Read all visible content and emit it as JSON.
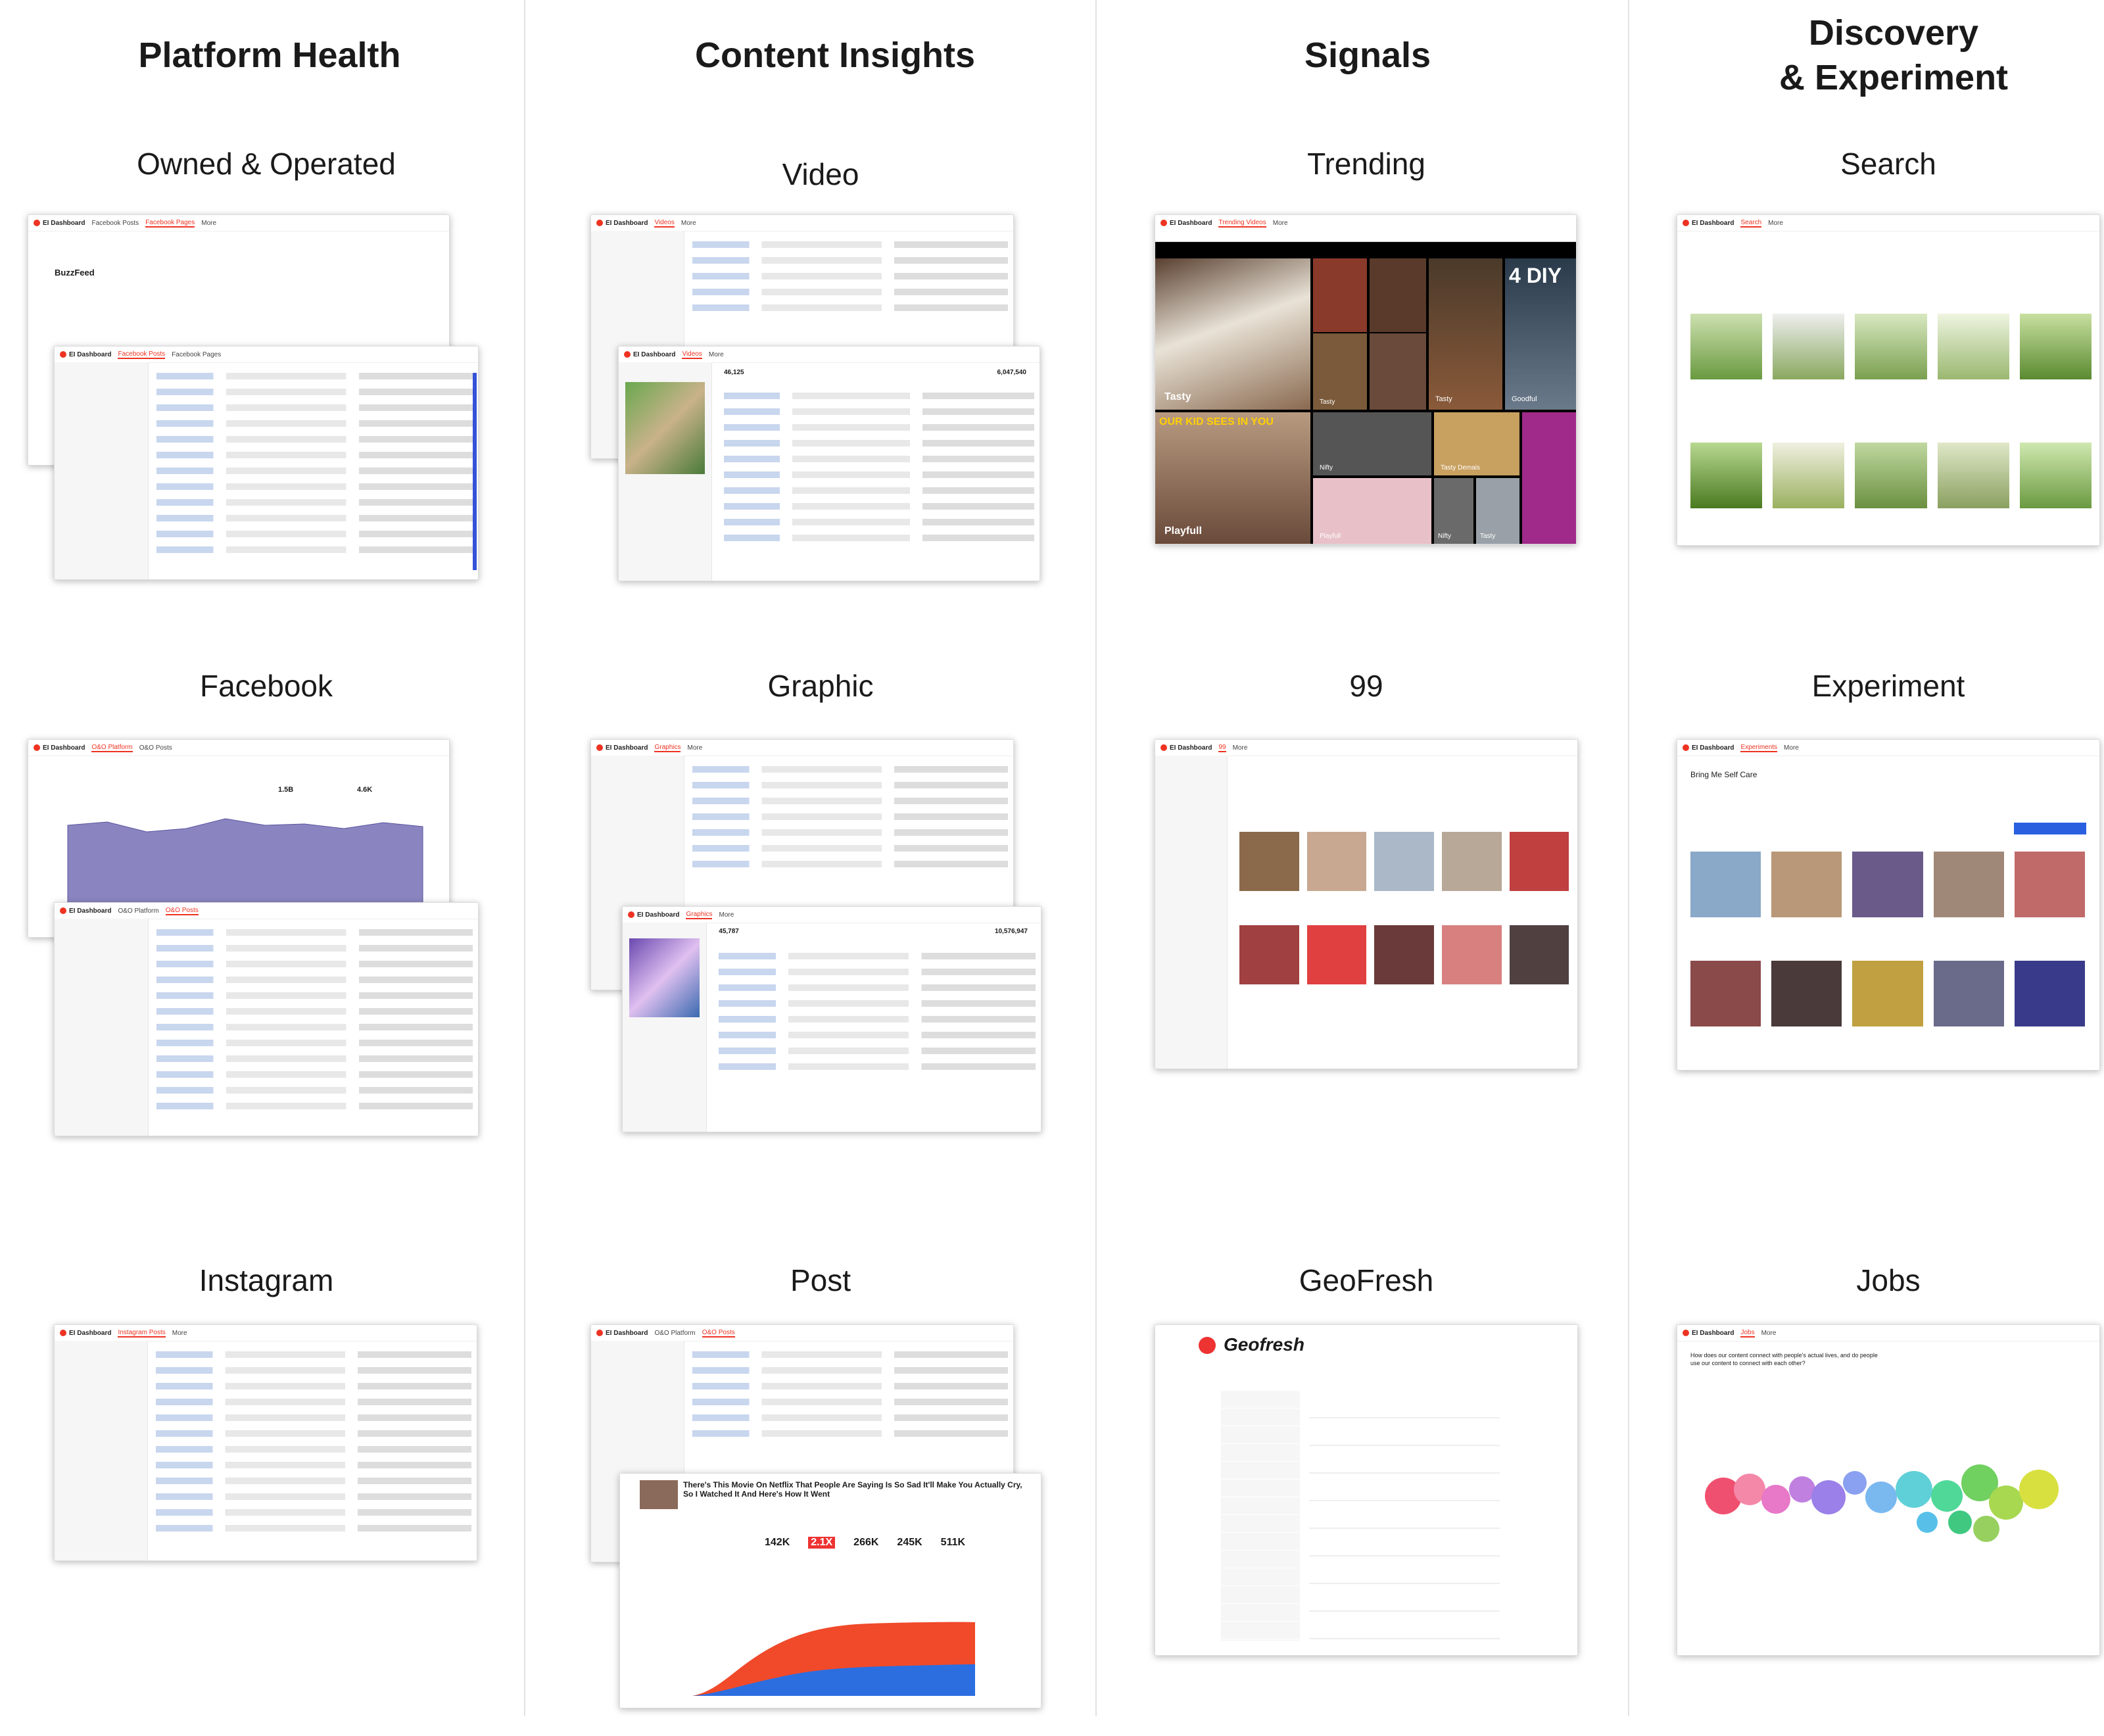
{
  "columns": [
    {
      "title": "Platform Health"
    },
    {
      "title": "Content Insights"
    },
    {
      "title": "Signals"
    },
    {
      "title": "Discovery\n& Experiment"
    }
  ],
  "sections": {
    "owned_operated": "Owned & Operated",
    "video": "Video",
    "trending": "Trending",
    "search": "Search",
    "facebook": "Facebook",
    "graphic": "Graphic",
    "ninety_nine": "99",
    "experiment": "Experiment",
    "instagram": "Instagram",
    "post": "Post",
    "geofresh": "GeoFresh",
    "jobs": "Jobs"
  },
  "screens": {
    "app_title": "EI Dashboard",
    "tab_facebook_posts": "Facebook Posts",
    "tab_facebook_pages": "Facebook Pages",
    "tab_videos": "Videos",
    "tab_trending": "Trending Videos",
    "tab_oo_platform": "O&O Platform",
    "tab_oo_posts": "O&O Posts",
    "tab_graphics": "Graphics",
    "tab_instagram": "Instagram Posts",
    "tab_99": "99",
    "tab_experiments": "Experiments",
    "tab_search": "Search",
    "tab_jobs": "Jobs",
    "more": "More",
    "buzzfeed": "BuzzFeed",
    "geofresh_brand": "Geofresh",
    "experiment_title": "Bring Me Self Care",
    "post_headline": "There's This Movie On Netflix That People Are Saying Is So Sad It'll Make You Actually Cry, So I Watched It And Here's How It Went",
    "post_stats": [
      "142K",
      "2.1X",
      "266K",
      "245K",
      "511K"
    ],
    "trending_labels": [
      "Tasty",
      "Tasty",
      "Tasty",
      "Goodful",
      "Playfull",
      "Nifty",
      "Tasty Demais",
      "Playfull",
      "Nifty",
      "Tasty"
    ],
    "trending_banner_1": "4 DIY",
    "trending_banner_2": "OUR KID SEES IN YOU",
    "global_shares": "46,125",
    "global_views": "6,047,540",
    "total_shares_graphic": "45,787",
    "total_impressions": "10,576,947",
    "pageviews_count": "1.5B",
    "posts_count": "4.6K",
    "jobs_question": "How does our content connect with people's actual lives, and do people use our content to connect with each other?"
  }
}
